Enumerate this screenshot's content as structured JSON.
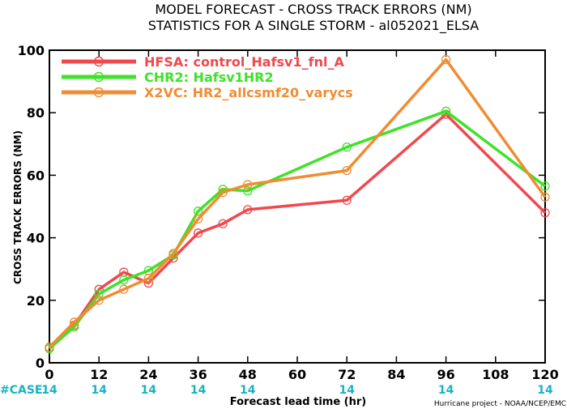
{
  "chart_data": {
    "type": "line",
    "title_line1": "MODEL FORECAST - CROSS TRACK ERRORS (NM)",
    "title_line2": "STATISTICS FOR A SINGLE STORM - al052021_ELSA",
    "xlabel": "Forecast lead time (hr)",
    "ylabel": "CROSS TRACK ERRORS (NM)",
    "xlim": [
      0,
      120
    ],
    "ylim": [
      0,
      100
    ],
    "x_ticks": [
      0,
      12,
      24,
      36,
      48,
      60,
      72,
      84,
      96,
      108,
      120
    ],
    "y_ticks": [
      0,
      20,
      40,
      60,
      80,
      100
    ],
    "grid": false,
    "legend_position": "top-left",
    "case_label": "#CASE",
    "case_counts": [
      {
        "x": 0,
        "count": "14"
      },
      {
        "x": 12,
        "count": "14"
      },
      {
        "x": 24,
        "count": "14"
      },
      {
        "x": 36,
        "count": "14"
      },
      {
        "x": 48,
        "count": "14"
      },
      {
        "x": 72,
        "count": "14"
      },
      {
        "x": 96,
        "count": "14"
      },
      {
        "x": 120,
        "count": "14"
      }
    ],
    "credit": "Hurricane project - NOAA/NCEP/EMC",
    "series": [
      {
        "name": "HFSA",
        "description": "control_Hafsv1_fnl_A",
        "color": "#f0484e",
        "points": [
          [
            0,
            5.0
          ],
          [
            6,
            12.0
          ],
          [
            12,
            23.5
          ],
          [
            18,
            29.0
          ],
          [
            24,
            25.5
          ],
          [
            30,
            33.5
          ],
          [
            36,
            41.5
          ],
          [
            42,
            44.5
          ],
          [
            48,
            49.0
          ],
          [
            72,
            52.0
          ],
          [
            96,
            79.5
          ],
          [
            120,
            48.0
          ]
        ]
      },
      {
        "name": "CHR2",
        "description": "Hafsv1HR2",
        "color": "#3ee228",
        "points": [
          [
            0,
            4.5
          ],
          [
            6,
            11.5
          ],
          [
            12,
            22.0
          ],
          [
            18,
            26.5
          ],
          [
            24,
            29.5
          ],
          [
            30,
            34.5
          ],
          [
            36,
            48.5
          ],
          [
            42,
            55.5
          ],
          [
            48,
            55.0
          ],
          [
            72,
            69.0
          ],
          [
            96,
            80.5
          ],
          [
            120,
            56.5
          ]
        ]
      },
      {
        "name": "X2VC",
        "description": "HR2_allcsmf20_varycs",
        "color": "#f08c33",
        "points": [
          [
            0,
            5.0
          ],
          [
            6,
            13.0
          ],
          [
            12,
            20.0
          ],
          [
            18,
            23.5
          ],
          [
            24,
            27.0
          ],
          [
            30,
            35.0
          ],
          [
            36,
            46.0
          ],
          [
            42,
            54.5
          ],
          [
            48,
            57.0
          ],
          [
            72,
            61.5
          ],
          [
            96,
            97.0
          ],
          [
            120,
            53.0
          ]
        ]
      }
    ]
  }
}
